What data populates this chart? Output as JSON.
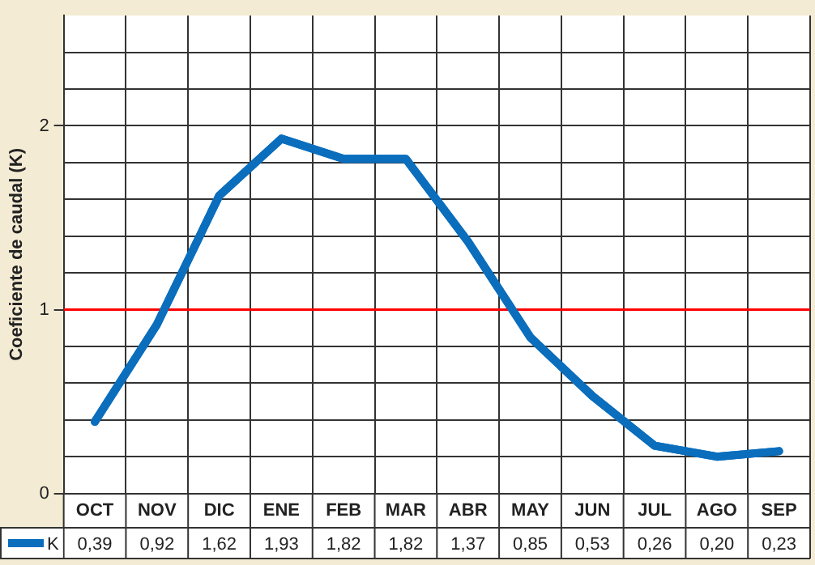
{
  "chart_data": {
    "type": "line",
    "ylabel": "Coeficiente de caudal (K)",
    "categories": [
      "OCT",
      "NOV",
      "DIC",
      "ENE",
      "FEB",
      "MAR",
      "ABR",
      "MAY",
      "JUN",
      "JUL",
      "AGO",
      "SEP"
    ],
    "series": [
      {
        "name": "K",
        "color": "#0a6ebd",
        "values": [
          0.39,
          0.92,
          1.62,
          1.93,
          1.82,
          1.82,
          1.37,
          0.85,
          0.53,
          0.26,
          0.2,
          0.23
        ],
        "value_labels": [
          "0,39",
          "0,92",
          "1,62",
          "1,93",
          "1,82",
          "1,82",
          "1,37",
          "0,85",
          "0,53",
          "0,26",
          "0,20",
          "0,23"
        ]
      }
    ],
    "ylim": [
      0,
      2.6
    ],
    "yticks": [
      0,
      {
        "value": 0.2,
        "label": null
      },
      {
        "value": 0.4,
        "label": null
      },
      {
        "value": 0.6,
        "label": null
      },
      {
        "value": 0.8,
        "label": null
      },
      1,
      {
        "value": 1.2,
        "label": null
      },
      {
        "value": 1.4,
        "label": null
      },
      {
        "value": 1.6,
        "label": null
      },
      {
        "value": 1.8,
        "label": null
      },
      2,
      {
        "value": 2.2,
        "label": null
      },
      {
        "value": 2.4,
        "label": null
      }
    ],
    "ref_lines": [
      {
        "axis": "y",
        "value": 1,
        "color": "#ff0000"
      }
    ],
    "grid": true,
    "legend": "bottom left",
    "marker": "none",
    "line_style": "solid"
  }
}
